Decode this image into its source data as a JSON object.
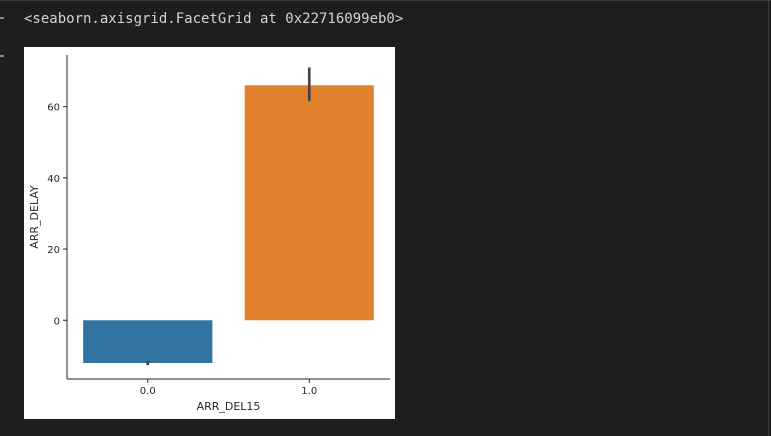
{
  "output": {
    "repr_text": "<seaborn.axisgrid.FacetGrid at 0x22716099eb0>"
  },
  "chart_data": {
    "type": "bar",
    "title": "",
    "xlabel": "ARR_DEL15",
    "ylabel": "ARR_DELAY",
    "categories": [
      "0.0",
      "1.0"
    ],
    "values": [
      -12.0,
      66.0
    ],
    "error_bars": [
      [
        -12.6,
        -11.4
      ],
      [
        61.5,
        71.0
      ]
    ],
    "colors": [
      "#3274a1",
      "#e1812c"
    ],
    "error_color": "#424242",
    "ylim": [
      -16.5,
      74.5
    ],
    "yticks": [
      0,
      20,
      40,
      60
    ],
    "ytick_labels": [
      "0",
      "20",
      "40",
      "60"
    ],
    "grid": false
  }
}
